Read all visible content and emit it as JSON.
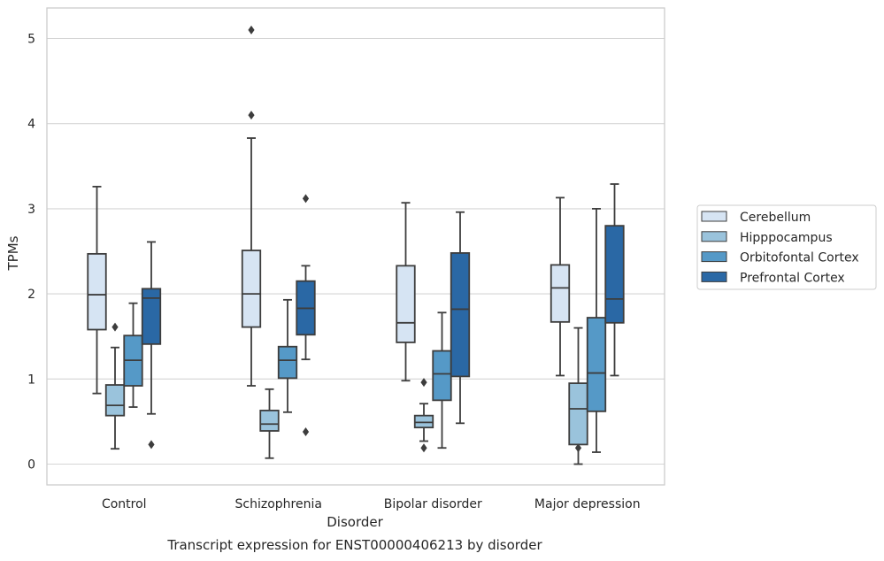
{
  "chart_data": {
    "type": "box",
    "title": "Transcript expression for ENST00000406213 by disorder",
    "xlabel": "Disorder",
    "ylabel": "TPMs",
    "ylim": [
      -0.25,
      5.35
    ],
    "yticks": [
      "0",
      "1",
      "2",
      "3",
      "4",
      "5"
    ],
    "grid": true,
    "legend_position": "right",
    "categories": [
      "Control",
      "Schizophrenia",
      "Bipolar disorder",
      "Major depression"
    ],
    "series": [
      {
        "name": "Cerebellum",
        "color": "#d6e4f3",
        "boxes": [
          {
            "whisker_low": 0.83,
            "q1": 1.58,
            "median": 1.99,
            "q3": 2.47,
            "whisker_high": 3.26,
            "outliers": []
          },
          {
            "whisker_low": 0.92,
            "q1": 1.61,
            "median": 2.0,
            "q3": 2.51,
            "whisker_high": 3.83,
            "outliers": [
              5.1,
              4.1
            ]
          },
          {
            "whisker_low": 0.98,
            "q1": 1.43,
            "median": 1.66,
            "q3": 2.33,
            "whisker_high": 3.07,
            "outliers": []
          },
          {
            "whisker_low": 1.04,
            "q1": 1.67,
            "median": 2.07,
            "q3": 2.34,
            "whisker_high": 3.13,
            "outliers": []
          }
        ]
      },
      {
        "name": "Hipppocampus",
        "color": "#9ac3dc",
        "boxes": [
          {
            "whisker_low": 0.18,
            "q1": 0.57,
            "median": 0.69,
            "q3": 0.93,
            "whisker_high": 1.37,
            "outliers": [
              1.61
            ]
          },
          {
            "whisker_low": 0.07,
            "q1": 0.39,
            "median": 0.47,
            "q3": 0.63,
            "whisker_high": 0.88,
            "outliers": []
          },
          {
            "whisker_low": 0.27,
            "q1": 0.43,
            "median": 0.49,
            "q3": 0.57,
            "whisker_high": 0.71,
            "outliers": [
              0.96,
              0.19
            ]
          },
          {
            "whisker_low": 0.0,
            "q1": 0.23,
            "median": 0.65,
            "q3": 0.95,
            "whisker_high": 1.6,
            "outliers": [
              0.19
            ]
          }
        ]
      },
      {
        "name": "Orbitofontal Cortex",
        "color": "#5599c7",
        "boxes": [
          {
            "whisker_low": 0.67,
            "q1": 0.92,
            "median": 1.22,
            "q3": 1.51,
            "whisker_high": 1.89,
            "outliers": []
          },
          {
            "whisker_low": 0.61,
            "q1": 1.01,
            "median": 1.22,
            "q3": 1.38,
            "whisker_high": 1.93,
            "outliers": []
          },
          {
            "whisker_low": 0.19,
            "q1": 0.75,
            "median": 1.06,
            "q3": 1.33,
            "whisker_high": 1.78,
            "outliers": []
          },
          {
            "whisker_low": 0.14,
            "q1": 0.62,
            "median": 1.07,
            "q3": 1.72,
            "whisker_high": 3.0,
            "outliers": []
          }
        ]
      },
      {
        "name": "Prefrontal Cortex",
        "color": "#2a68a5",
        "boxes": [
          {
            "whisker_low": 0.59,
            "q1": 1.41,
            "median": 1.95,
            "q3": 2.06,
            "whisker_high": 2.61,
            "outliers": [
              0.23
            ]
          },
          {
            "whisker_low": 1.23,
            "q1": 1.52,
            "median": 1.83,
            "q3": 2.15,
            "whisker_high": 2.33,
            "outliers": [
              3.12,
              0.38
            ]
          },
          {
            "whisker_low": 0.48,
            "q1": 1.03,
            "median": 1.82,
            "q3": 2.48,
            "whisker_high": 2.96,
            "outliers": []
          },
          {
            "whisker_low": 1.04,
            "q1": 1.66,
            "median": 1.94,
            "q3": 2.8,
            "whisker_high": 3.29,
            "outliers": []
          }
        ]
      }
    ]
  }
}
